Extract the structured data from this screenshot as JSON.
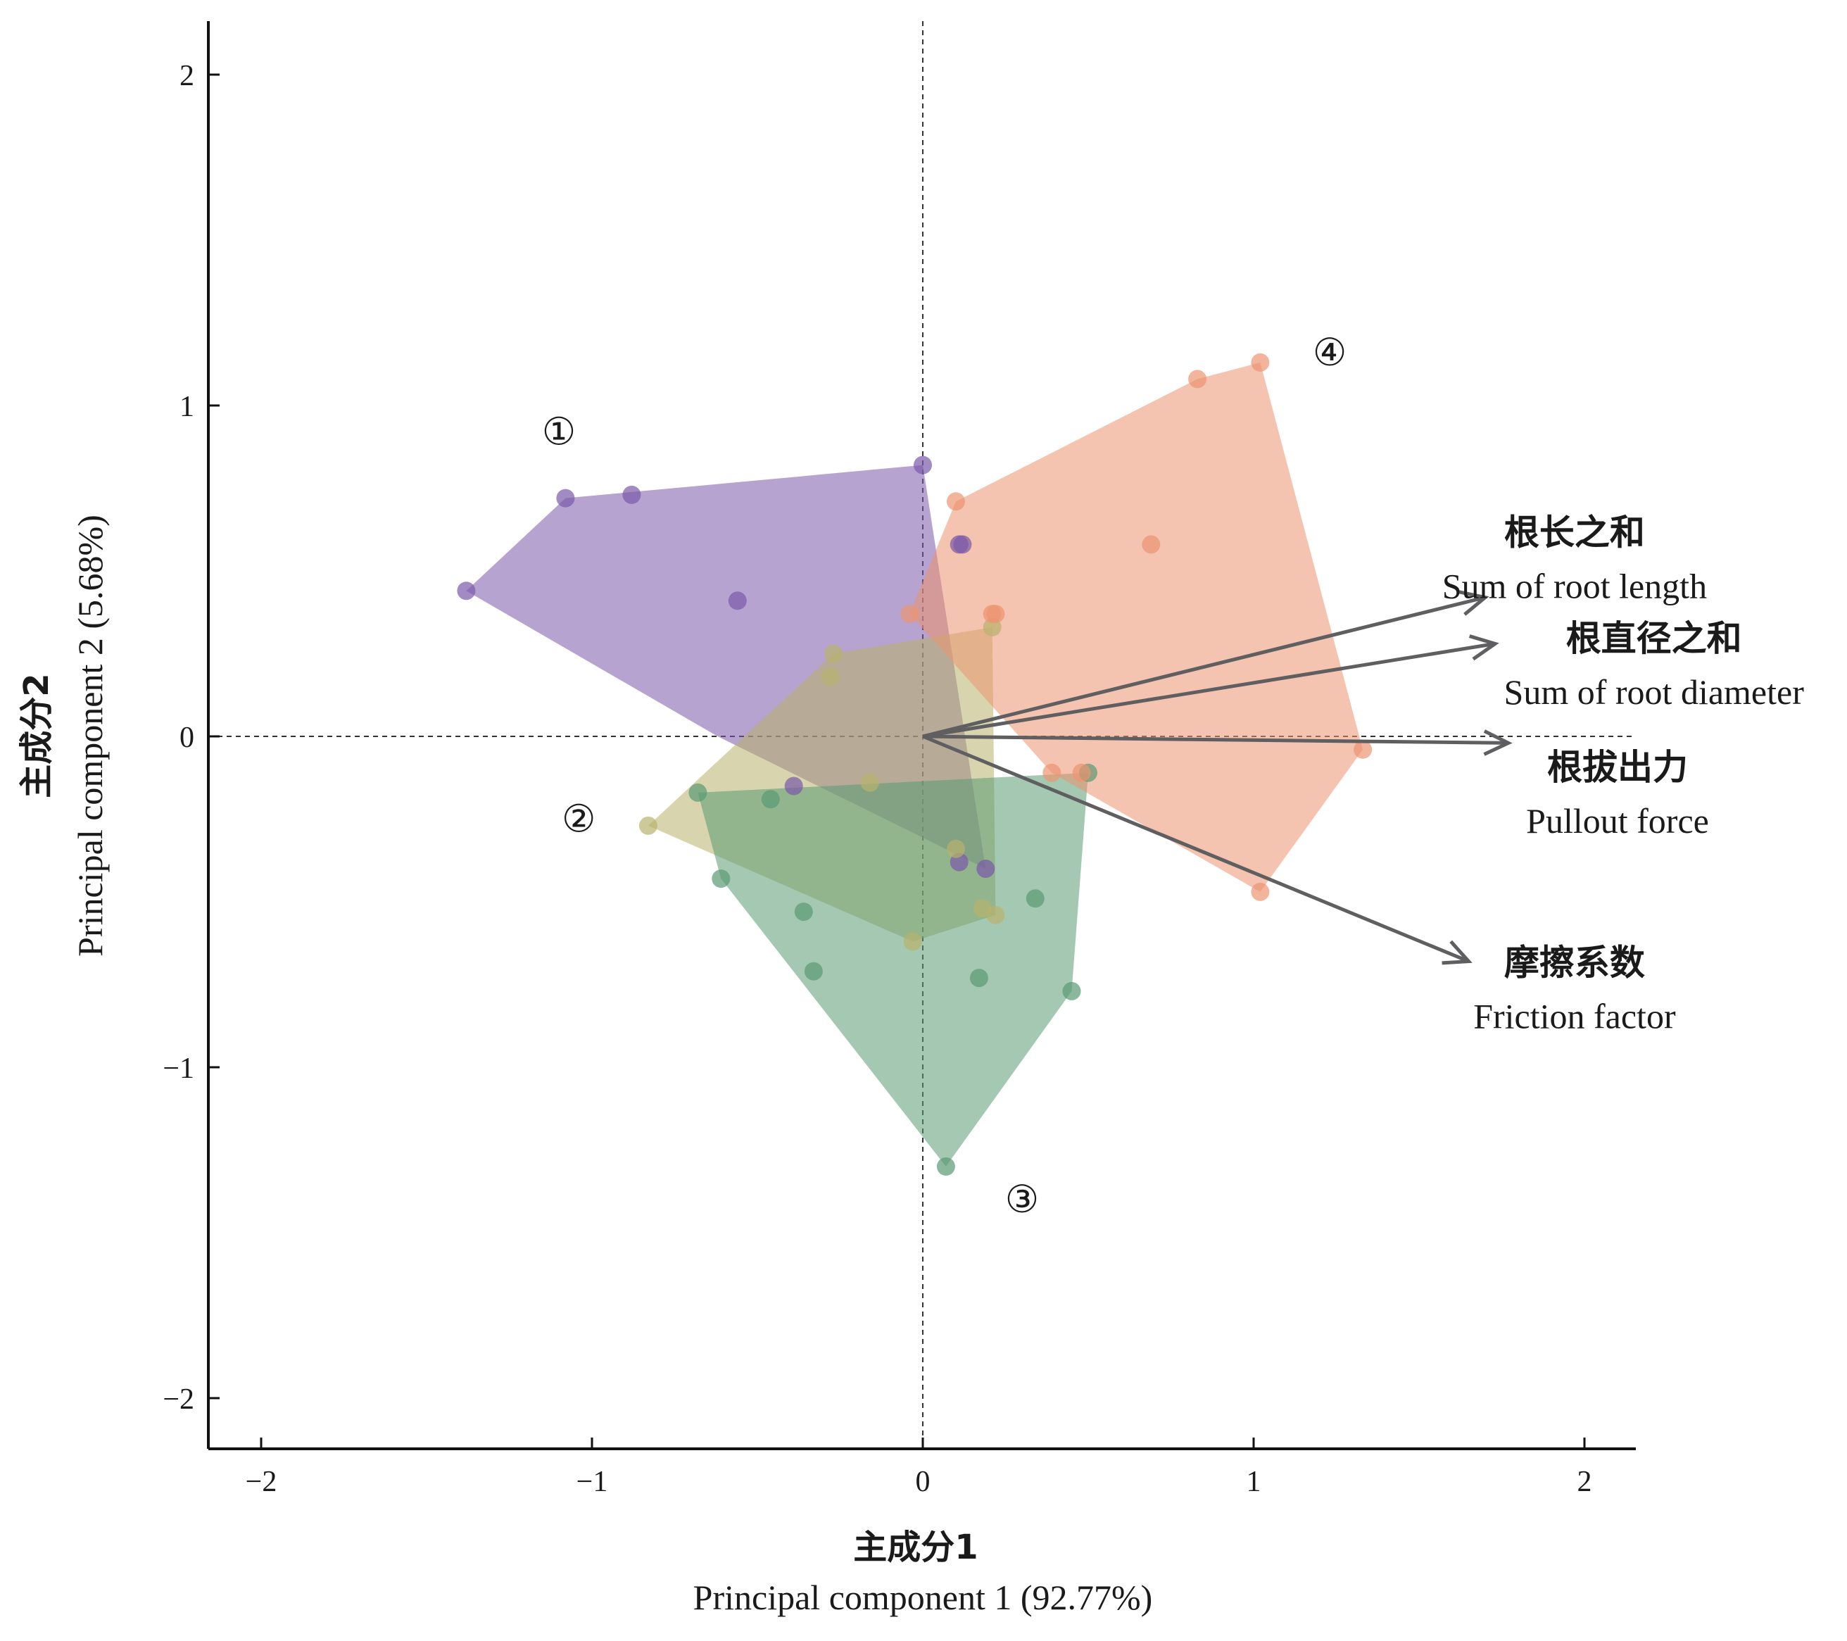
{
  "chart_data": {
    "type": "scatter",
    "subtype": "pca-biplot",
    "xlim": [
      -2.15,
      2.15
    ],
    "ylim": [
      -2.15,
      2.15
    ],
    "x_ticks": [
      {
        "value": -2,
        "label": "−2"
      },
      {
        "value": -1,
        "label": "−1"
      },
      {
        "value": 0,
        "label": "0"
      },
      {
        "value": 1,
        "label": "1"
      },
      {
        "value": 2,
        "label": "2"
      }
    ],
    "y_ticks": [
      {
        "value": 2,
        "label": "2"
      },
      {
        "value": 1,
        "label": "1"
      },
      {
        "value": 0,
        "label": "0"
      },
      {
        "value": -1,
        "label": "−1"
      },
      {
        "value": -2,
        "label": "−2"
      }
    ],
    "xlabel_cn": "主成分1",
    "xlabel_en": "Principal component 1 (92.77%)",
    "ylabel_cn": "主成分2",
    "ylabel_en": "Principal component 2 (5.68%)",
    "grid": false,
    "reference_lines": "dashed lines at x=0 and y=0",
    "groups": [
      {
        "label": "①",
        "color": "#7a58a8",
        "label_pos": [
          -1.1,
          0.92
        ],
        "hull": [
          [
            -1.38,
            0.44
          ],
          [
            -1.08,
            0.72
          ],
          [
            0.0,
            0.82
          ],
          [
            0.19,
            -0.4
          ],
          [
            -0.62,
            0.0
          ]
        ],
        "points": [
          [
            -1.38,
            0.44
          ],
          [
            -1.08,
            0.72
          ],
          [
            -0.88,
            0.73
          ],
          [
            -0.56,
            0.41
          ],
          [
            0.0,
            0.82
          ],
          [
            0.11,
            0.58
          ],
          [
            0.12,
            0.58
          ],
          [
            -0.39,
            -0.15
          ],
          [
            0.11,
            -0.38
          ],
          [
            0.19,
            -0.4
          ]
        ]
      },
      {
        "label": "②",
        "color": "#b8b26c",
        "label_pos": [
          -1.04,
          -0.25
        ],
        "hull": [
          [
            -0.83,
            -0.27
          ],
          [
            -0.27,
            0.25
          ],
          [
            0.21,
            0.33
          ],
          [
            0.22,
            -0.54
          ],
          [
            -0.03,
            -0.62
          ]
        ],
        "points": [
          [
            -0.83,
            -0.27
          ],
          [
            -0.27,
            0.25
          ],
          [
            -0.28,
            0.18
          ],
          [
            -0.16,
            -0.14
          ],
          [
            0.21,
            0.33
          ],
          [
            0.18,
            -0.52
          ],
          [
            0.22,
            -0.54
          ],
          [
            -0.03,
            -0.62
          ],
          [
            0.1,
            -0.34
          ]
        ]
      },
      {
        "label": "③",
        "color": "#5a9a73",
        "label_pos": [
          0.3,
          -1.4
        ],
        "hull": [
          [
            -0.68,
            -0.17
          ],
          [
            0.5,
            -0.11
          ],
          [
            0.45,
            -0.77
          ],
          [
            0.07,
            -1.3
          ],
          [
            -0.61,
            -0.43
          ]
        ],
        "points": [
          [
            -0.68,
            -0.17
          ],
          [
            -0.46,
            -0.19
          ],
          [
            -0.61,
            -0.43
          ],
          [
            -0.36,
            -0.53
          ],
          [
            -0.33,
            -0.71
          ],
          [
            0.17,
            -0.73
          ],
          [
            0.34,
            -0.49
          ],
          [
            0.45,
            -0.77
          ],
          [
            0.07,
            -1.3
          ],
          [
            0.5,
            -0.11
          ]
        ]
      },
      {
        "label": "④",
        "color": "#ed9470",
        "label_pos": [
          1.23,
          1.16
        ],
        "hull": [
          [
            0.1,
            0.71
          ],
          [
            0.83,
            1.08
          ],
          [
            1.02,
            1.13
          ],
          [
            1.33,
            -0.04
          ],
          [
            1.02,
            -0.47
          ],
          [
            0.39,
            -0.11
          ],
          [
            -0.04,
            0.37
          ]
        ],
        "points": [
          [
            0.1,
            0.71
          ],
          [
            0.83,
            1.08
          ],
          [
            1.02,
            1.13
          ],
          [
            0.69,
            0.58
          ],
          [
            0.21,
            0.37
          ],
          [
            0.22,
            0.37
          ],
          [
            -0.04,
            0.37
          ],
          [
            1.33,
            -0.04
          ],
          [
            1.02,
            -0.47
          ],
          [
            0.39,
            -0.11
          ],
          [
            0.48,
            -0.11
          ]
        ]
      }
    ],
    "vectors": [
      {
        "name_cn": "根长之和",
        "name_en": "Sum of root length",
        "end": [
          1.7,
          0.42
        ],
        "label_pos": [
          1.97,
          0.58
        ]
      },
      {
        "name_cn": "根直径之和",
        "name_en": "Sum of root diameter",
        "end": [
          1.73,
          0.28
        ],
        "label_pos": [
          2.21,
          0.26
        ]
      },
      {
        "name_cn": "根拔出力",
        "name_en": "Pullout force",
        "end": [
          1.77,
          -0.02
        ],
        "label_pos": [
          2.1,
          -0.13
        ]
      },
      {
        "name_cn": "摩擦系数",
        "name_en": "Friction factor",
        "end": [
          1.65,
          -0.68
        ],
        "label_pos": [
          1.97,
          -0.72
        ]
      }
    ],
    "arrow_color": "#5f5f61"
  }
}
